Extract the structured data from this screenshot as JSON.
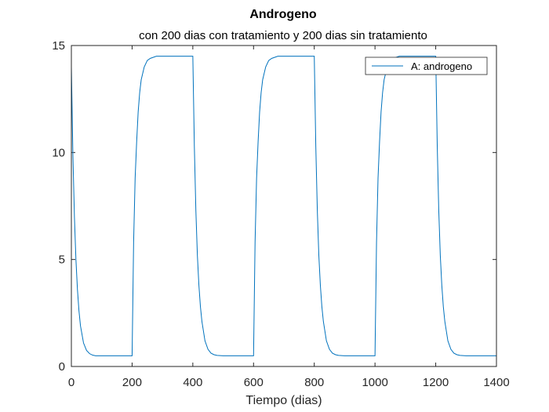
{
  "chart_data": {
    "type": "line",
    "title": "Androgeno",
    "subtitle": "con 200 dias con tratamiento y 200 dias sin tratamiento",
    "xlabel": "Tiempo (dias)",
    "ylabel": "",
    "xlim": [
      0,
      1400
    ],
    "ylim": [
      0,
      15
    ],
    "xticks": [
      0,
      200,
      400,
      600,
      800,
      1000,
      1200,
      1400
    ],
    "yticks": [
      0,
      5,
      10,
      15
    ],
    "grid": false,
    "legend": "top-right",
    "series": [
      {
        "name": "A: androgeno",
        "color": "#0072BD",
        "x": [
          0,
          5,
          10,
          15,
          20,
          25,
          30,
          40,
          50,
          60,
          70,
          80,
          100,
          150,
          199.9,
          200,
          205,
          210,
          215,
          220,
          225,
          230,
          240,
          250,
          260,
          270,
          280,
          300,
          350,
          399.9,
          400,
          405,
          410,
          415,
          420,
          425,
          430,
          440,
          450,
          460,
          470,
          480,
          500,
          550,
          599.9,
          600,
          605,
          610,
          615,
          620,
          625,
          630,
          640,
          650,
          660,
          670,
          680,
          700,
          750,
          799.9,
          800,
          805,
          810,
          815,
          820,
          825,
          830,
          840,
          850,
          860,
          870,
          880,
          900,
          950,
          999.9,
          1000,
          1005,
          1010,
          1015,
          1020,
          1025,
          1030,
          1040,
          1050,
          1060,
          1070,
          1080,
          1100,
          1150,
          1199.9,
          1200,
          1205,
          1210,
          1215,
          1220,
          1225,
          1230,
          1240,
          1250,
          1260,
          1270,
          1280,
          1300,
          1350,
          1400
        ],
        "y": [
          14.0,
          9.9,
          7.0,
          5.0,
          3.6,
          2.6,
          1.9,
          1.1,
          0.75,
          0.6,
          0.53,
          0.5,
          0.5,
          0.5,
          0.5,
          0.5,
          5.8,
          8.8,
          10.5,
          11.9,
          12.8,
          13.4,
          14.0,
          14.3,
          14.4,
          14.45,
          14.5,
          14.5,
          14.5,
          14.5,
          14.5,
          10.3,
          7.3,
          5.2,
          3.8,
          2.8,
          2.1,
          1.2,
          0.8,
          0.62,
          0.55,
          0.52,
          0.5,
          0.5,
          0.5,
          0.5,
          5.8,
          8.8,
          10.5,
          11.9,
          12.8,
          13.4,
          14.0,
          14.3,
          14.4,
          14.45,
          14.5,
          14.5,
          14.5,
          14.5,
          14.5,
          10.3,
          7.3,
          5.2,
          3.8,
          2.8,
          2.1,
          1.2,
          0.8,
          0.62,
          0.55,
          0.52,
          0.5,
          0.5,
          0.5,
          0.5,
          5.8,
          8.8,
          10.5,
          11.9,
          12.8,
          13.4,
          14.0,
          14.3,
          14.4,
          14.45,
          14.5,
          14.5,
          14.5,
          14.5,
          14.5,
          10.3,
          7.3,
          5.2,
          3.8,
          2.8,
          2.1,
          1.2,
          0.8,
          0.62,
          0.55,
          0.52,
          0.5,
          0.5,
          0.5
        ]
      }
    ]
  }
}
